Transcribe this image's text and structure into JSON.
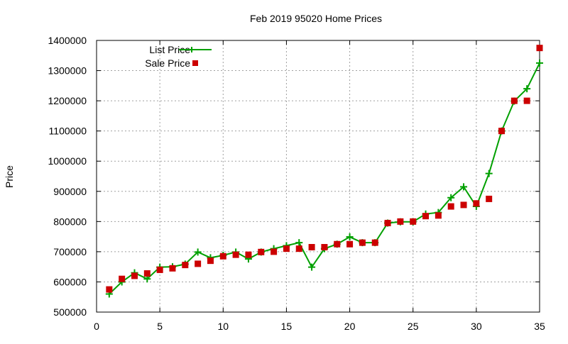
{
  "chart_data": {
    "type": "line",
    "title": "Feb 2019 95020 Home Prices",
    "xlabel": "",
    "ylabel": "Price",
    "xlim": [
      0,
      35
    ],
    "ylim": [
      500000,
      1400000
    ],
    "xticks": [
      0,
      5,
      10,
      15,
      20,
      25,
      30,
      35
    ],
    "yticks": [
      500000,
      600000,
      700000,
      800000,
      900000,
      1000000,
      1100000,
      1200000,
      1300000,
      1400000
    ],
    "grid": true,
    "legend_position": "top-left",
    "x": [
      1,
      2,
      3,
      4,
      5,
      6,
      7,
      8,
      9,
      10,
      11,
      12,
      13,
      14,
      15,
      16,
      17,
      18,
      19,
      20,
      21,
      22,
      23,
      24,
      25,
      26,
      27,
      28,
      29,
      30,
      31,
      32,
      33,
      34,
      35
    ],
    "series": [
      {
        "name": "List Price",
        "style": "linespoints",
        "color": "#00a000",
        "values": [
          560000,
          600000,
          630000,
          610000,
          649000,
          650000,
          659000,
          699000,
          680000,
          688000,
          699000,
          676000,
          699000,
          710000,
          720000,
          730000,
          649000,
          710000,
          725000,
          749000,
          730000,
          730000,
          795000,
          799000,
          799000,
          825000,
          830000,
          879000,
          915000,
          850000,
          959000,
          1100000,
          1199000,
          1240000,
          1325000
        ]
      },
      {
        "name": "Sale Price",
        "style": "points",
        "color": "#cc0000",
        "values": [
          575000,
          610000,
          620000,
          628000,
          640000,
          645000,
          656000,
          660000,
          670000,
          685000,
          690000,
          690000,
          699000,
          700000,
          710000,
          710000,
          715000,
          715000,
          725000,
          725000,
          730000,
          730000,
          795000,
          800000,
          800000,
          818000,
          820000,
          850000,
          855000,
          860000,
          875000,
          1100000,
          1200000,
          1200000,
          1375000
        ]
      }
    ]
  }
}
